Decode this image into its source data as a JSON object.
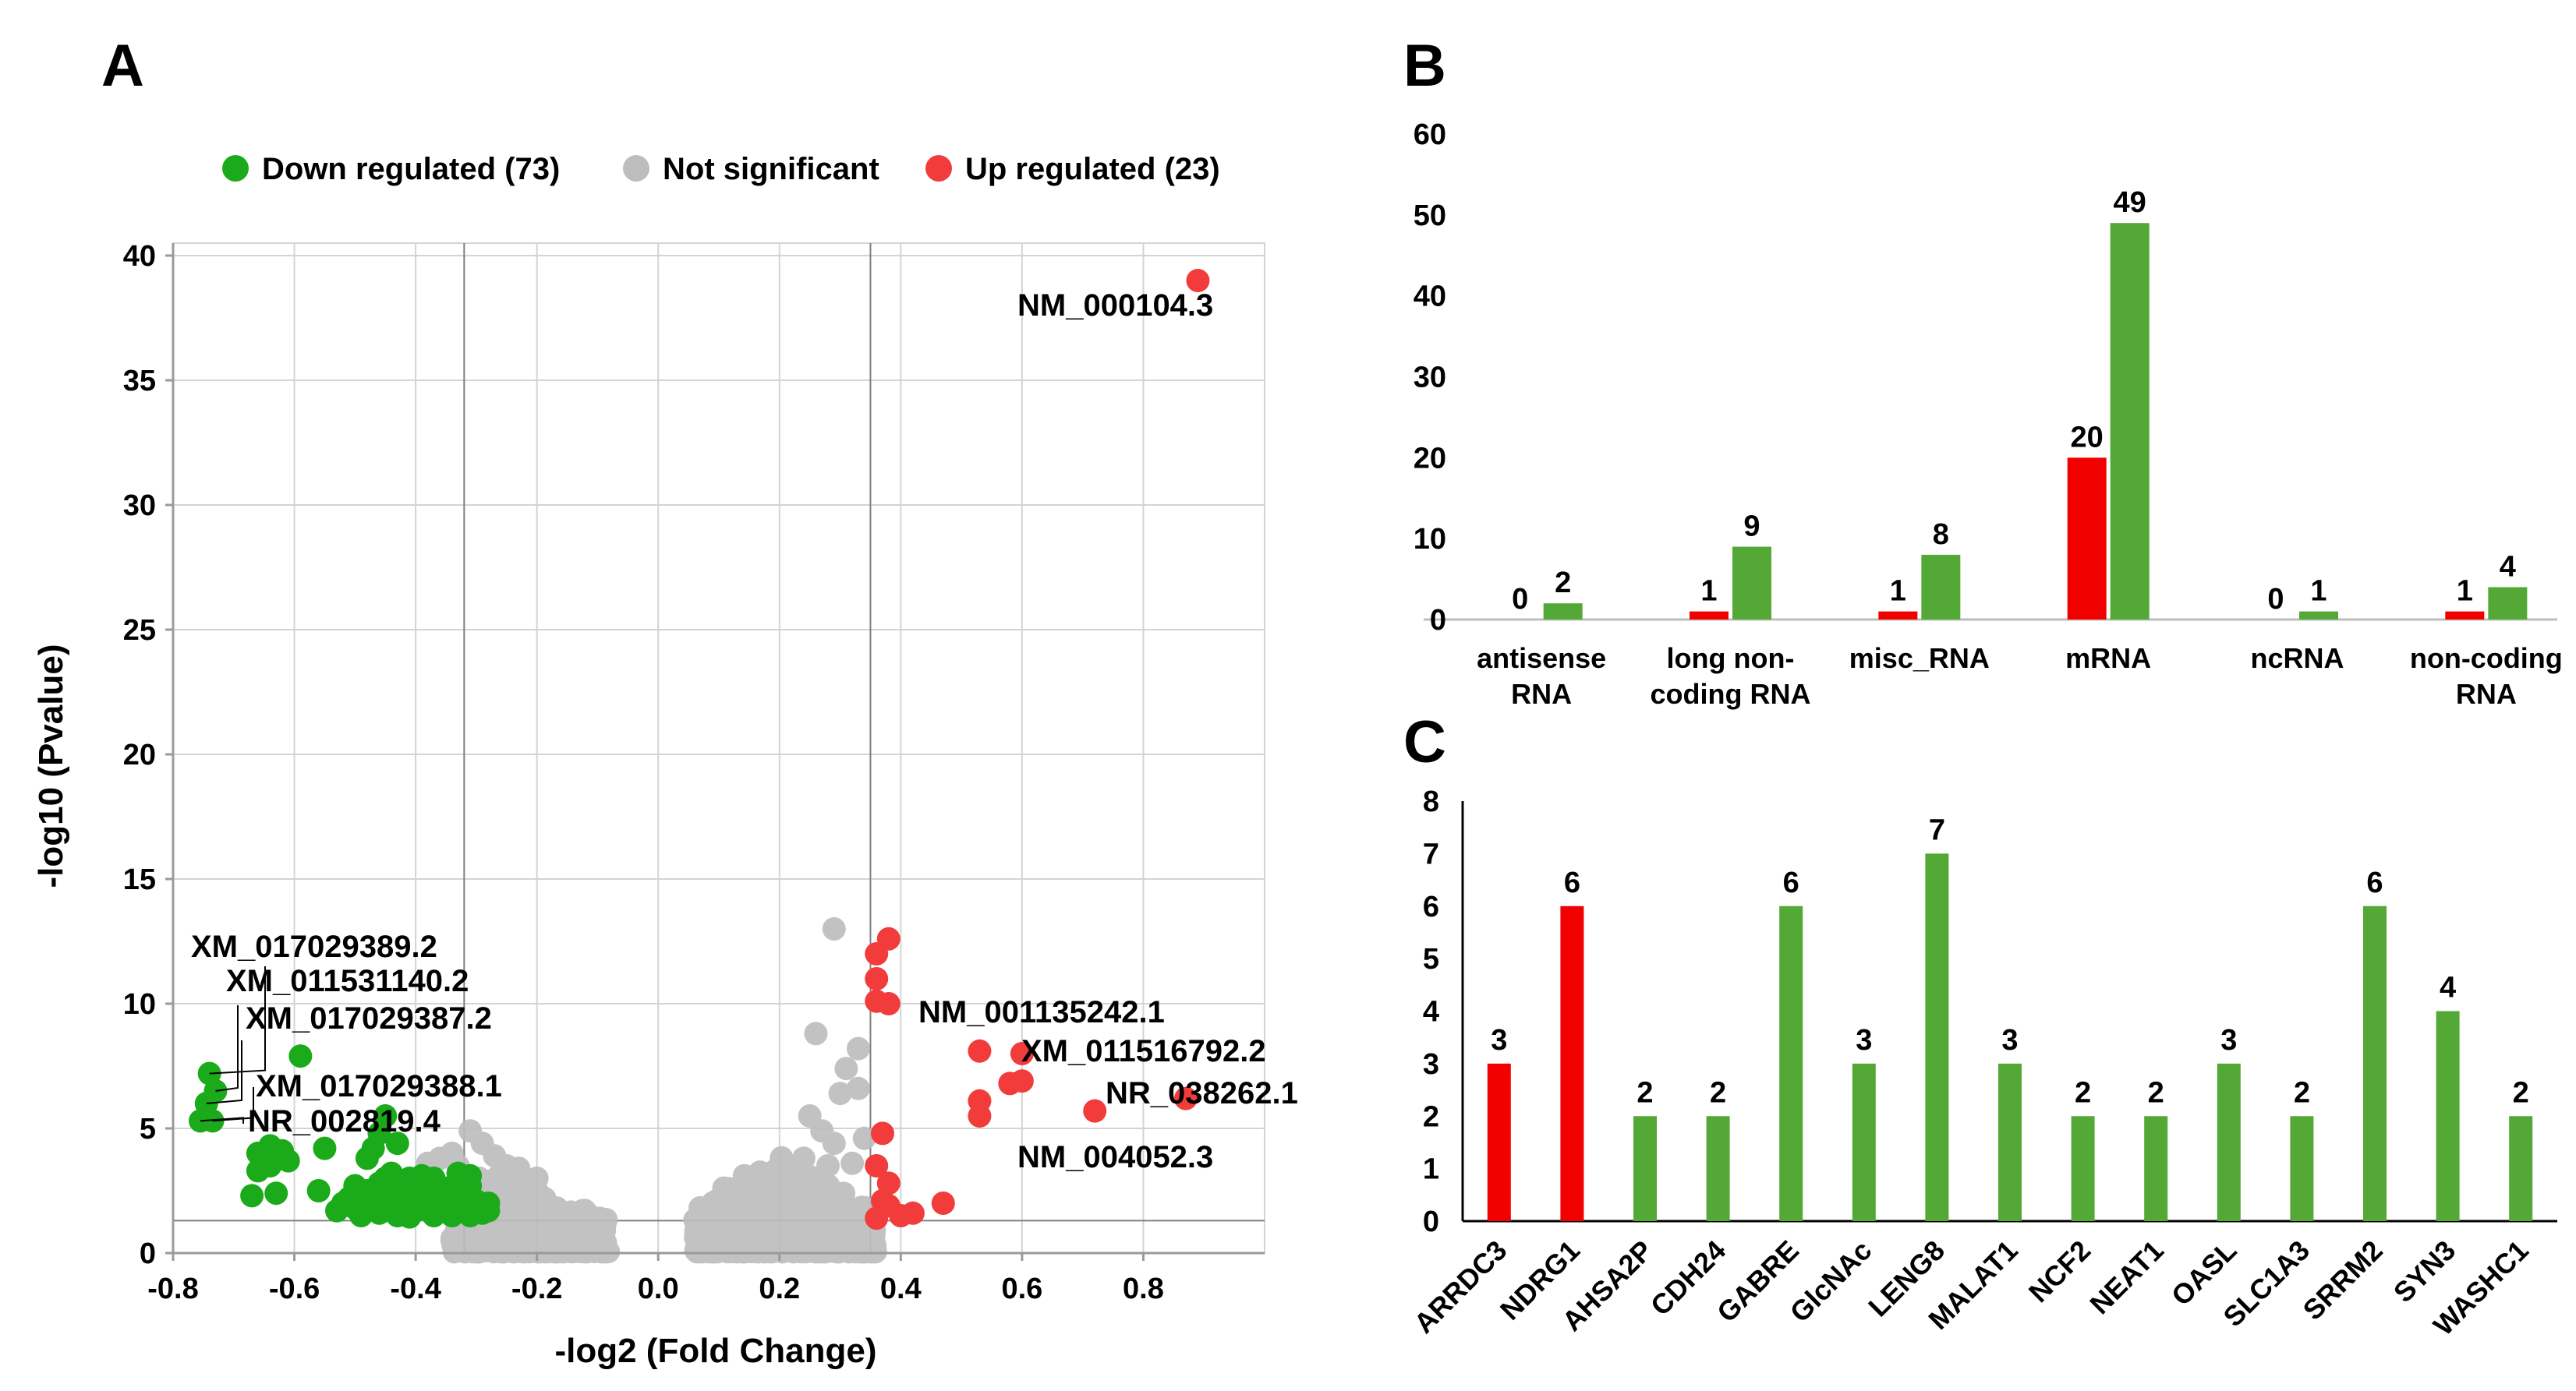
{
  "panels": {
    "A": "A",
    "B": "B",
    "C": "C"
  },
  "colors": {
    "down": "#1aaa1a",
    "ns": "#bdbdbd",
    "up": "#f23c3c",
    "bar_red": "#f20000",
    "bar_green": "#53a836"
  },
  "chart_data": [
    {
      "id": "A",
      "type": "scatter",
      "title": "",
      "xlabel": "-log2 (Fold Change)",
      "ylabel": "-log10 (Pvalue)",
      "xlim": [
        -0.8,
        1.0
      ],
      "ylim": [
        0,
        40.5
      ],
      "xticks": [
        -0.8,
        -0.6,
        -0.4,
        -0.2,
        0.0,
        0.2,
        0.4,
        0.6,
        0.8
      ],
      "xtick_labels": [
        "-0.8",
        "-0.6",
        "-0.4",
        "-0.2",
        "0.0",
        "0.2",
        "0.4",
        "0.6",
        "0.8"
      ],
      "yticks": [
        0,
        5,
        10,
        15,
        20,
        25,
        30,
        35,
        40
      ],
      "ytick_labels": [
        "0",
        "5",
        "10",
        "15",
        "20",
        "25",
        "30",
        "35",
        "40"
      ],
      "vlines": [
        -0.32,
        0.35
      ],
      "hline": 1.3,
      "legend": [
        {
          "key": "down",
          "label": "Down regulated (73)"
        },
        {
          "key": "ns",
          "label": "Not significant"
        },
        {
          "key": "up",
          "label": "Up regulated (23)"
        }
      ],
      "series": [
        {
          "name": "Up regulated (23)",
          "key": "up",
          "points": [
            [
              0.89,
              39.0
            ],
            [
              0.38,
              12.6
            ],
            [
              0.36,
              12.0
            ],
            [
              0.36,
              11.0
            ],
            [
              0.36,
              10.1
            ],
            [
              0.38,
              10.0
            ],
            [
              0.53,
              8.1
            ],
            [
              0.6,
              8.0
            ],
            [
              0.58,
              6.8
            ],
            [
              0.6,
              6.9
            ],
            [
              0.53,
              6.1
            ],
            [
              0.53,
              5.5
            ],
            [
              0.87,
              6.2
            ],
            [
              0.72,
              5.7
            ],
            [
              0.37,
              4.8
            ],
            [
              0.36,
              3.5
            ],
            [
              0.38,
              2.8
            ],
            [
              0.37,
              2.1
            ],
            [
              0.47,
              2.0
            ],
            [
              0.38,
              1.9
            ],
            [
              0.4,
              1.5
            ],
            [
              0.42,
              1.6
            ],
            [
              0.36,
              1.4
            ]
          ]
        },
        {
          "name": "Down regulated (73)",
          "key": "down",
          "points": [
            [
              -0.74,
              7.2
            ],
            [
              -0.73,
              6.5
            ],
            [
              -0.745,
              6.0
            ],
            [
              -0.755,
              5.3
            ],
            [
              -0.735,
              5.3
            ],
            [
              -0.59,
              7.9
            ],
            [
              -0.64,
              4.3
            ],
            [
              -0.66,
              4.0
            ],
            [
              -0.62,
              4.1
            ],
            [
              -0.55,
              4.2
            ],
            [
              -0.64,
              3.5
            ],
            [
              -0.61,
              3.7
            ],
            [
              -0.66,
              3.3
            ],
            [
              -0.63,
              2.4
            ],
            [
              -0.67,
              2.3
            ],
            [
              -0.56,
              2.5
            ],
            [
              -0.45,
              5.5
            ],
            [
              -0.46,
              4.8
            ],
            [
              -0.47,
              4.2
            ],
            [
              -0.43,
              4.4
            ],
            [
              -0.48,
              3.8
            ],
            [
              -0.44,
              3.2
            ],
            [
              -0.41,
              3.0
            ],
            [
              -0.39,
              3.1
            ],
            [
              -0.37,
              3.0
            ],
            [
              -0.33,
              3.2
            ],
            [
              -0.31,
              3.1
            ],
            [
              -0.5,
              2.7
            ],
            [
              -0.48,
              2.5
            ],
            [
              -0.45,
              2.4
            ],
            [
              -0.42,
              2.3
            ],
            [
              -0.4,
              2.2
            ],
            [
              -0.38,
              2.5
            ],
            [
              -0.36,
              2.3
            ],
            [
              -0.34,
              2.2
            ],
            [
              -0.32,
              2.4
            ],
            [
              -0.3,
              2.1
            ],
            [
              -0.52,
              2.0
            ],
            [
              -0.5,
              1.8
            ],
            [
              -0.47,
              1.9
            ],
            [
              -0.44,
              1.8
            ],
            [
              -0.42,
              1.9
            ],
            [
              -0.4,
              1.7
            ],
            [
              -0.38,
              1.8
            ],
            [
              -0.35,
              1.7
            ],
            [
              -0.33,
              1.9
            ],
            [
              -0.3,
              1.8
            ],
            [
              -0.29,
              1.6
            ],
            [
              -0.46,
              1.6
            ],
            [
              -0.43,
              1.5
            ],
            [
              -0.37,
              1.5
            ],
            [
              -0.34,
              1.5
            ],
            [
              -0.31,
              1.5
            ],
            [
              -0.49,
              1.5
            ],
            [
              -0.41,
              1.45
            ],
            [
              -0.39,
              1.9
            ],
            [
              -0.36,
              2.0
            ],
            [
              -0.44,
              2.1
            ],
            [
              -0.47,
              2.2
            ],
            [
              -0.35,
              2.6
            ],
            [
              -0.39,
              2.7
            ],
            [
              -0.31,
              2.7
            ],
            [
              -0.53,
              1.7
            ],
            [
              -0.51,
              2.2
            ],
            [
              -0.28,
              2.0
            ],
            [
              -0.42,
              2.6
            ],
            [
              -0.46,
              2.8
            ],
            [
              -0.33,
              2.6
            ],
            [
              -0.37,
              2.7
            ],
            [
              -0.4,
              2.9
            ],
            [
              -0.28,
              1.7
            ],
            [
              -0.45,
              3.0
            ],
            [
              -0.43,
              1.6
            ]
          ]
        }
      ],
      "annotations": [
        {
          "text": "NM_000104.3",
          "x": 0.89,
          "y": 39.0
        },
        {
          "text": "XM_017029389.2",
          "x": -0.74,
          "y": 7.2
        },
        {
          "text": "XM_011531140.2",
          "x": -0.73,
          "y": 6.5
        },
        {
          "text": "XM_017029387.2",
          "x": -0.745,
          "y": 6.0
        },
        {
          "text": "XM_017029388.1",
          "x": -0.735,
          "y": 5.3
        },
        {
          "text": "NR_002819.4",
          "x": -0.755,
          "y": 5.3
        },
        {
          "text": "NM_001135242.1",
          "x": 0.38,
          "y": 10.0
        },
        {
          "text": "XM_011516792.2",
          "x": 0.6,
          "y": 8.0
        },
        {
          "text": "NR_038262.1",
          "x": 0.87,
          "y": 6.2
        },
        {
          "text": "NM_004052.3",
          "x": 0.72,
          "y": 5.7
        }
      ]
    },
    {
      "id": "B",
      "type": "bar",
      "title": "",
      "xlabel": "",
      "ylabel": "",
      "ylim": [
        0,
        60
      ],
      "yticks": [
        0,
        10,
        20,
        30,
        40,
        50,
        60
      ],
      "ytick_labels": [
        "0",
        "10",
        "20",
        "30",
        "40",
        "50",
        "60"
      ],
      "categories": [
        [
          "antisense",
          "RNA"
        ],
        [
          "long non-",
          "coding RNA"
        ],
        [
          "misc_RNA"
        ],
        [
          "mRNA"
        ],
        [
          "ncRNA"
        ],
        [
          "non-coding",
          "RNA"
        ]
      ],
      "series": [
        {
          "name": "Up regulated",
          "key": "bar_red",
          "values": [
            0,
            1,
            1,
            20,
            0,
            1
          ],
          "labels": [
            "0",
            "1",
            "1",
            "20",
            "0",
            "1"
          ]
        },
        {
          "name": "Down regulated",
          "key": "bar_green",
          "values": [
            2,
            9,
            8,
            49,
            1,
            4
          ],
          "labels": [
            "2",
            "9",
            "8",
            "49",
            "1",
            "4"
          ]
        }
      ]
    },
    {
      "id": "C",
      "type": "bar",
      "title": "",
      "xlabel": "",
      "ylabel": "",
      "ylim": [
        0,
        8
      ],
      "yticks": [
        0,
        1,
        2,
        3,
        4,
        5,
        6,
        7,
        8
      ],
      "ytick_labels": [
        "0",
        "1",
        "2",
        "3",
        "4",
        "5",
        "6",
        "7",
        "8"
      ],
      "categories": [
        "ARRDC3",
        "NDRG1",
        "AHSA2P",
        "CDH24",
        "GABRE",
        "GlcNAc",
        "LENG8",
        "MALAT1",
        "NCF2",
        "NEAT1",
        "OASL",
        "SLC1A3",
        "SRRM2",
        "SYN3",
        "WASHC1"
      ],
      "values": [
        3,
        6,
        2,
        2,
        6,
        3,
        7,
        3,
        2,
        2,
        3,
        2,
        6,
        4,
        2
      ],
      "value_labels": [
        "3",
        "6",
        "2",
        "2",
        "6",
        "3",
        "7",
        "3",
        "2",
        "2",
        "3",
        "2",
        "6",
        "4",
        "2"
      ],
      "colors": [
        "bar_red",
        "bar_red",
        "bar_green",
        "bar_green",
        "bar_green",
        "bar_green",
        "bar_green",
        "bar_green",
        "bar_green",
        "bar_green",
        "bar_green",
        "bar_green",
        "bar_green",
        "bar_green",
        "bar_green"
      ]
    }
  ]
}
